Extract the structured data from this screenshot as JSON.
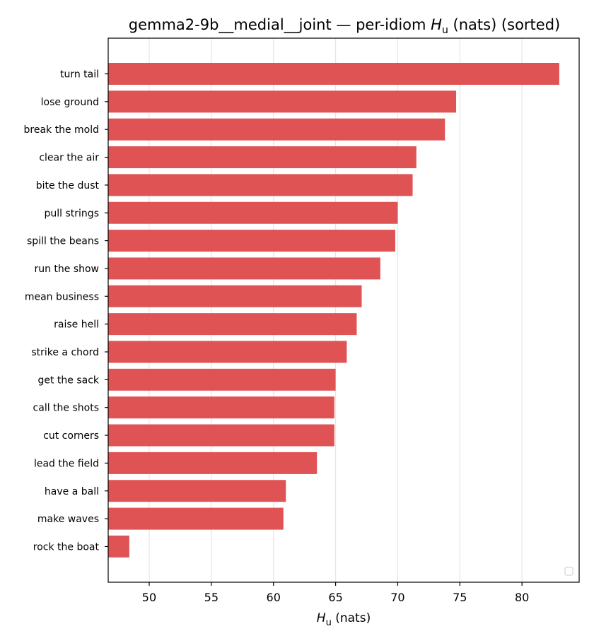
{
  "chart_data": {
    "type": "bar",
    "orientation": "horizontal",
    "title_main": "gemma2-9b__medial__joint — per-idiom ",
    "title_sym": "H",
    "title_sub": "u",
    "title_tail": " (nats) (sorted)",
    "xlabel_sym": "H",
    "xlabel_sub": "u",
    "xlabel_tail": " (nats)",
    "ylabel": "",
    "categories": [
      "turn tail",
      "lose ground",
      "break the mold",
      "clear the air",
      "bite the dust",
      "pull strings",
      "spill the beans",
      "run the show",
      "mean business",
      "raise hell",
      "strike a chord",
      "get the sack",
      "call the shots",
      "cut corners",
      "lead the field",
      "have a ball",
      "make waves",
      "rock the boat"
    ],
    "values": [
      83.0,
      74.7,
      73.8,
      71.5,
      71.2,
      70.0,
      69.8,
      68.6,
      67.1,
      66.7,
      65.9,
      65.0,
      64.9,
      64.9,
      63.5,
      61.0,
      60.8,
      48.4
    ],
    "xlim": [
      46.7,
      84.6
    ],
    "xticks": [
      50,
      55,
      60,
      65,
      70,
      75,
      80
    ],
    "grid": "x",
    "bar_color": "#e05355",
    "legend": "bottom-right (empty)"
  }
}
